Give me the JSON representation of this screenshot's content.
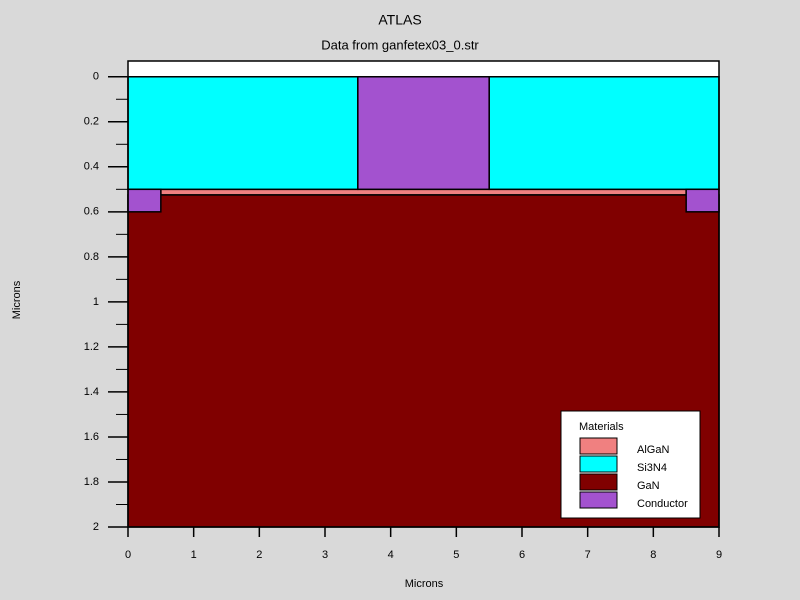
{
  "chart_data": {
    "type": "regions",
    "title": "ATLAS",
    "subtitle": "Data from ganfetex03_0.str",
    "x_label": "Microns",
    "y_label": "Microns",
    "xlim": [
      0,
      9
    ],
    "ylim": [
      -0.07,
      2
    ],
    "y_inverted": true,
    "xticks": [
      0,
      1,
      2,
      3,
      4,
      5,
      6,
      7,
      8,
      9
    ],
    "yticks": [
      0,
      0.2,
      0.4,
      0.6,
      0.8,
      1,
      1.2,
      1.4,
      1.6,
      1.8,
      2
    ],
    "yminorticks": [
      0.1,
      0.3,
      0.5,
      0.7,
      0.9,
      1.1,
      1.3,
      1.5,
      1.7,
      1.9
    ],
    "legend_title": "Materials",
    "legend_position": "lower right",
    "series": [
      {
        "name": "AlGaN",
        "color": "#f08080",
        "regions": [
          {
            "x": [
              0.5,
              8.5
            ],
            "y": [
              0.5,
              0.525
            ]
          }
        ]
      },
      {
        "name": "Si3N4",
        "color": "#00ffff",
        "regions": [
          {
            "x": [
              0,
              3.5
            ],
            "y": [
              0,
              0.5
            ]
          },
          {
            "x": [
              5.5,
              9
            ],
            "y": [
              0,
              0.5
            ]
          }
        ]
      },
      {
        "name": "GaN",
        "color": "#800000",
        "regions": [
          {
            "x": [
              0,
              9
            ],
            "y": [
              0.525,
              2
            ]
          }
        ]
      },
      {
        "name": "Conductor",
        "color": "#a352cf",
        "regions": [
          {
            "x": [
              3.5,
              5.5
            ],
            "y": [
              0,
              0.5
            ]
          },
          {
            "x": [
              0,
              0.5
            ],
            "y": [
              0.5,
              0.6
            ]
          },
          {
            "x": [
              8.5,
              9
            ],
            "y": [
              0.5,
              0.6
            ]
          }
        ]
      }
    ]
  }
}
